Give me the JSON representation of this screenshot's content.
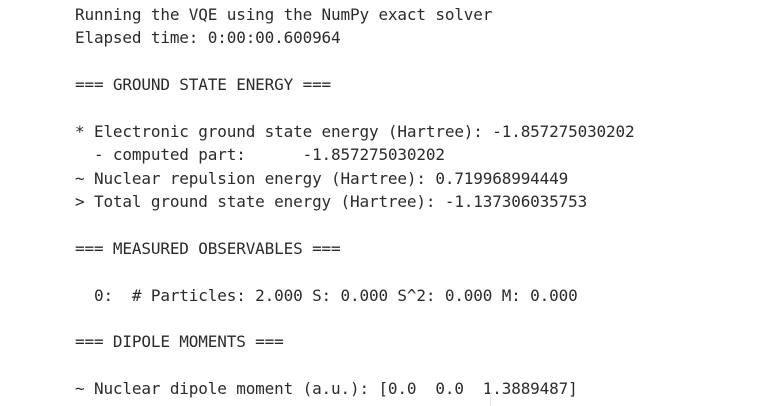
{
  "output": {
    "lines": [
      "Running the VQE using the NumPy exact solver",
      "Elapsed time: 0:00:00.600964",
      "=== GROUND STATE ENERGY ===",
      "* Electronic ground state energy (Hartree): -1.857275030202",
      "  - computed part:      -1.857275030202",
      "~ Nuclear repulsion energy (Hartree): 0.719968994449",
      "> Total ground state energy (Hartree): -1.137306035753",
      "=== MEASURED OBSERVABLES ===",
      "  0:  # Particles: 2.000 S: 0.000 S^2: 0.000 M: 0.000",
      "=== DIPOLE MOMENTS ===",
      "~ Nuclear dipole moment (a.u.): [0.0  0.0  1.3889487]"
    ]
  },
  "colors": {
    "background": "#ffffff",
    "text": "#2b2b2b"
  }
}
